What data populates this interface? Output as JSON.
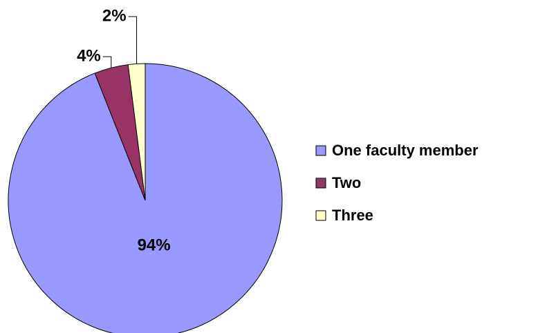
{
  "chart_data": {
    "type": "pie",
    "categories": [
      "One faculty member",
      "Two",
      "Three"
    ],
    "values": [
      94,
      4,
      2
    ],
    "value_labels": [
      "94%",
      "4%",
      "2%"
    ],
    "colors": [
      "#9999ff",
      "#993366",
      "#ffffcc"
    ],
    "legend": "right"
  }
}
